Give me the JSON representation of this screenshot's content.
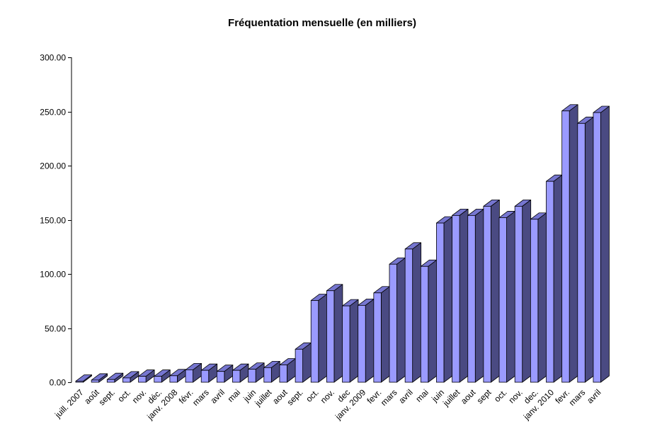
{
  "chart_data": {
    "type": "bar",
    "title": "Fréquentation mensuelle (en milliers)",
    "xlabel": "",
    "ylabel": "",
    "ylim": [
      0,
      300
    ],
    "yticks": [
      "0.00",
      "50.00",
      "100.00",
      "150.00",
      "200.00",
      "250.00",
      "300.00"
    ],
    "grid": false,
    "legend": "none",
    "three_d": true,
    "categories": [
      "juill. 2007",
      "août",
      "sept.",
      "oct.",
      "nov.",
      "déc.",
      "janv. 2008",
      "févr.",
      "mars",
      "avril",
      "mai",
      "juin",
      "juillet",
      "aout",
      "sept.",
      "oct.",
      "nov.",
      "dec",
      "janv. 2009",
      "fevr.",
      "mars",
      "avril",
      "mai",
      "juin",
      "juillet",
      "aout",
      "sept",
      "oct.",
      "nov.",
      "dec.",
      "janv. 2010",
      "fevr.",
      "mars",
      "avril"
    ],
    "values": [
      1.0,
      2.0,
      2.5,
      4.0,
      5.5,
      5.5,
      6.0,
      11.5,
      11.0,
      10.0,
      11.0,
      12.0,
      13.5,
      16.0,
      30.5,
      75.5,
      84.5,
      70.5,
      71.0,
      82.5,
      109.0,
      123.0,
      107.0,
      147.0,
      154.0,
      154.0,
      162.5,
      152.0,
      162.5,
      150.5,
      185.5,
      250.5,
      239.0,
      249.0
    ],
    "colors": {
      "front": "#9a9aff",
      "side": "#4a4a82",
      "top": "#7676d0",
      "edge": "#000000",
      "axis": "#000000"
    }
  }
}
